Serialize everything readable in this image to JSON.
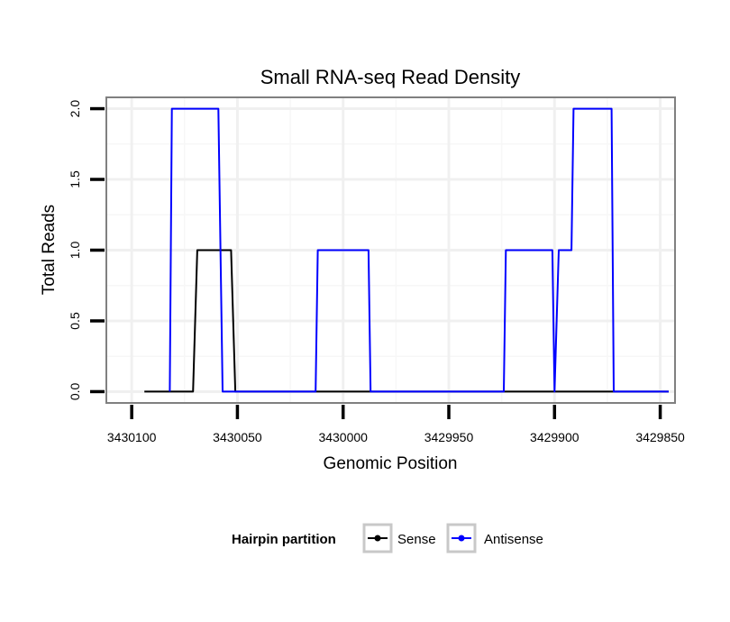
{
  "chart_data": {
    "type": "line",
    "title": "Small RNA-seq Read Density",
    "xlabel": "Genomic Position",
    "ylabel": "Total Reads",
    "xlim": [
      3430112,
      3429843
    ],
    "x_reversed": true,
    "ylim": [
      -0.08,
      2.08
    ],
    "x_ticks": [
      3430100,
      3430050,
      3430000,
      3429950,
      3429900,
      3429850
    ],
    "x_tick_labels": [
      "3430100",
      "3430050",
      "3430000",
      "3429950",
      "3429900",
      "3429850"
    ],
    "y_ticks": [
      0.0,
      0.5,
      1.0,
      1.5,
      2.0
    ],
    "y_tick_labels": [
      "0.0",
      "0.5",
      "1.0",
      "1.5",
      "2.0"
    ],
    "grid": true,
    "legend": {
      "title": "Hairpin partition",
      "position": "bottom"
    },
    "series": [
      {
        "name": "Sense",
        "color": "#000000",
        "x": [
          3430094,
          3430071,
          3430069,
          3430053,
          3430051,
          3429846
        ],
        "y": [
          0,
          0,
          1,
          1,
          0,
          0
        ]
      },
      {
        "name": "Antisense",
        "color": "#0000ff",
        "x": [
          3430082,
          3430081,
          3430059,
          3430057,
          3430013,
          3430012,
          3429988,
          3429987,
          3429924,
          3429923,
          3429901,
          3429900,
          3429898,
          3429892,
          3429891,
          3429873,
          3429872,
          3429846
        ],
        "y": [
          0,
          2,
          2,
          0,
          0,
          1,
          1,
          0,
          0,
          1,
          1,
          0,
          1,
          1,
          2,
          2,
          0,
          0
        ]
      }
    ]
  }
}
